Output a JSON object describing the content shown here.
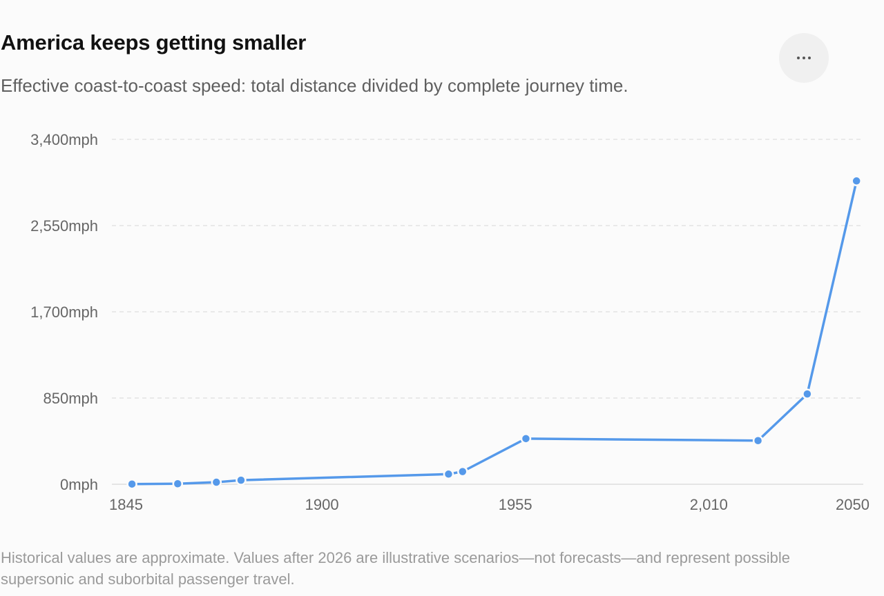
{
  "header": {
    "title": "America keeps getting smaller",
    "subtitle": "Effective coast-to-coast speed: total distance divided by complete journey time.",
    "more_icon": "more-horizontal-icon"
  },
  "chart_data": {
    "type": "line",
    "ylabel": "",
    "xlabel": "",
    "xlim": [
      1845,
      2050
    ],
    "ylim": [
      0,
      3400
    ],
    "x_ticks": [
      1845,
      1900,
      1955,
      2010,
      2050
    ],
    "x_tick_labels": [
      "1845",
      "1900",
      "1955",
      "2,010",
      "2050"
    ],
    "y_ticks": [
      0,
      850,
      1700,
      2550,
      3400
    ],
    "y_tick_labels": [
      "0mph",
      "850mph",
      "1,700mph",
      "2,550mph",
      "3,400mph"
    ],
    "grid": "horizontal-dashed",
    "series": [
      {
        "color": "#5599ea",
        "x": [
          1846,
          1859,
          1870,
          1877,
          1936,
          1940,
          1958,
          2024,
          2038,
          2052
        ],
        "y": [
          2,
          5,
          20,
          40,
          100,
          125,
          450,
          430,
          890,
          2990
        ]
      }
    ]
  },
  "footnote": "Historical values are approximate. Values after 2026 are illustrative scenarios—not forecasts—and represent possible supersonic and suborbital passenger travel."
}
